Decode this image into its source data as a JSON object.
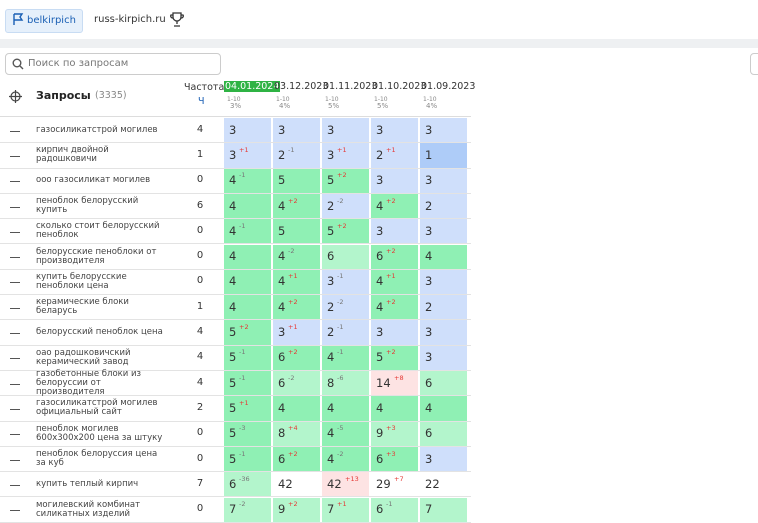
{
  "tabs": [
    "belkirpich",
    "russ-kirpich.ru"
  ],
  "search_placeholder": "Поиск по запросам",
  "header": {
    "queries_label": "Запросы",
    "count": "(3335)",
    "freq_label": "Частота",
    "freq_sub": "Ч"
  },
  "dates": [
    {
      "date": "04.01.2024",
      "range": "1-10",
      "pct": "3%"
    },
    {
      "date": "03.12.2023",
      "range": "1-10",
      "pct": "4%"
    },
    {
      "date": "01.11.2023",
      "range": "1-10",
      "pct": "5%"
    },
    {
      "date": "01.10.2023",
      "range": "1-10",
      "pct": "5%"
    },
    {
      "date": "01.09.2023",
      "range": "1-10",
      "pct": "4%"
    }
  ],
  "rows": [
    {
      "query": "газосиликатстрой могилев",
      "freq": 4,
      "cells": [
        {
          "pos": 3,
          "color": "#cfdffb"
        },
        {
          "pos": 3,
          "color": "#cfdffb"
        },
        {
          "pos": 3,
          "color": "#cfdffb"
        },
        {
          "pos": 3,
          "color": "#cfdffb"
        },
        {
          "pos": 3,
          "color": "#cfdffb"
        }
      ]
    },
    {
      "query": "кирпич двойной радошковичи",
      "freq": 1,
      "cells": [
        {
          "pos": 3,
          "delta": "+1",
          "color": "#cfdffb"
        },
        {
          "pos": 2,
          "delta": "-1",
          "color": "#cfdffb"
        },
        {
          "pos": 3,
          "delta": "+1",
          "color": "#cfdffb"
        },
        {
          "pos": 2,
          "delta": "+1",
          "color": "#cfdffb"
        },
        {
          "pos": 1,
          "color": "#aeccf8"
        }
      ]
    },
    {
      "query": "ооо газосиликат могилев",
      "freq": 0,
      "cells": [
        {
          "pos": 4,
          "delta": "-1",
          "color": "#8ff0b4"
        },
        {
          "pos": 5,
          "color": "#8ff0b4"
        },
        {
          "pos": 5,
          "delta": "+2",
          "color": "#8ff0b4"
        },
        {
          "pos": 3,
          "color": "#cfdffb"
        },
        {
          "pos": 3,
          "color": "#cfdffb"
        }
      ]
    },
    {
      "query": "пеноблок белорусский купить",
      "freq": 6,
      "cells": [
        {
          "pos": 4,
          "color": "#8ff0b4"
        },
        {
          "pos": 4,
          "delta": "+2",
          "color": "#8ff0b4"
        },
        {
          "pos": 2,
          "delta": "-2",
          "color": "#cfdffb"
        },
        {
          "pos": 4,
          "delta": "+2",
          "color": "#8ff0b4"
        },
        {
          "pos": 2,
          "color": "#cfdffb"
        }
      ]
    },
    {
      "query": "сколько стоит белорусский пеноблок",
      "freq": 0,
      "cells": [
        {
          "pos": 4,
          "delta": "-1",
          "color": "#8ff0b4"
        },
        {
          "pos": 5,
          "color": "#8ff0b4"
        },
        {
          "pos": 5,
          "delta": "+2",
          "color": "#8ff0b4"
        },
        {
          "pos": 3,
          "color": "#cfdffb"
        },
        {
          "pos": 3,
          "color": "#cfdffb"
        }
      ]
    },
    {
      "query": "белорусские пеноблоки от производителя",
      "freq": 0,
      "cells": [
        {
          "pos": 4,
          "color": "#8ff0b4"
        },
        {
          "pos": 4,
          "delta": "-2",
          "color": "#8ff0b4"
        },
        {
          "pos": 6,
          "color": "#b3f5cc"
        },
        {
          "pos": 6,
          "delta": "+2",
          "color": "#8ff0b4"
        },
        {
          "pos": 4,
          "color": "#8ff0b4"
        }
      ]
    },
    {
      "query": "купить белорусские пеноблоки цена",
      "freq": 0,
      "cells": [
        {
          "pos": 4,
          "color": "#8ff0b4"
        },
        {
          "pos": 4,
          "delta": "+1",
          "color": "#8ff0b4"
        },
        {
          "pos": 3,
          "delta": "-1",
          "color": "#cfdffb"
        },
        {
          "pos": 4,
          "delta": "+1",
          "color": "#8ff0b4"
        },
        {
          "pos": 3,
          "color": "#cfdffb"
        }
      ]
    },
    {
      "query": "керамические блоки беларусь",
      "freq": 1,
      "cells": [
        {
          "pos": 4,
          "color": "#8ff0b4"
        },
        {
          "pos": 4,
          "delta": "+2",
          "color": "#8ff0b4"
        },
        {
          "pos": 2,
          "delta": "-2",
          "color": "#cfdffb"
        },
        {
          "pos": 4,
          "delta": "+2",
          "color": "#8ff0b4"
        },
        {
          "pos": 2,
          "color": "#cfdffb"
        }
      ]
    },
    {
      "query": "белорусский пеноблок цена",
      "freq": 4,
      "cells": [
        {
          "pos": 5,
          "delta": "+2",
          "color": "#8ff0b4"
        },
        {
          "pos": 3,
          "delta": "+1",
          "color": "#cfdffb"
        },
        {
          "pos": 2,
          "delta": "-1",
          "color": "#cfdffb"
        },
        {
          "pos": 3,
          "color": "#cfdffb"
        },
        {
          "pos": 3,
          "color": "#cfdffb"
        }
      ]
    },
    {
      "query": "оао радошковичский керамический завод",
      "freq": 4,
      "cells": [
        {
          "pos": 5,
          "delta": "-1",
          "color": "#8ff0b4"
        },
        {
          "pos": 6,
          "delta": "+2",
          "color": "#8ff0b4"
        },
        {
          "pos": 4,
          "delta": "-1",
          "color": "#8ff0b4"
        },
        {
          "pos": 5,
          "delta": "+2",
          "color": "#8ff0b4"
        },
        {
          "pos": 3,
          "color": "#cfdffb"
        }
      ]
    },
    {
      "query": "газобетонные блоки из белоруссии от производителя",
      "freq": 4,
      "cells": [
        {
          "pos": 5,
          "delta": "-1",
          "color": "#8ff0b4"
        },
        {
          "pos": 6,
          "delta": "-2",
          "color": "#b3f5cc"
        },
        {
          "pos": 8,
          "delta": "-6",
          "color": "#b3f5cc"
        },
        {
          "pos": 14,
          "delta": "+8",
          "color": "#fde3e3"
        },
        {
          "pos": 6,
          "color": "#b3f5cc"
        }
      ]
    },
    {
      "query": "газосиликатстрой могилев официальный сайт",
      "freq": 2,
      "cells": [
        {
          "pos": 5,
          "delta": "+1",
          "color": "#8ff0b4"
        },
        {
          "pos": 4,
          "color": "#8ff0b4"
        },
        {
          "pos": 4,
          "color": "#8ff0b4"
        },
        {
          "pos": 4,
          "color": "#8ff0b4"
        },
        {
          "pos": 4,
          "color": "#8ff0b4"
        }
      ]
    },
    {
      "query": "пеноблок могилев 600х300х200 цена за штуку",
      "freq": 0,
      "cells": [
        {
          "pos": 5,
          "delta": "-3",
          "color": "#8ff0b4"
        },
        {
          "pos": 8,
          "delta": "+4",
          "color": "#b3f5cc"
        },
        {
          "pos": 4,
          "delta": "-5",
          "color": "#8ff0b4"
        },
        {
          "pos": 9,
          "delta": "+3",
          "color": "#b3f5cc"
        },
        {
          "pos": 6,
          "color": "#b3f5cc"
        }
      ]
    },
    {
      "query": "пеноблок белоруссия цена за куб",
      "freq": 0,
      "cells": [
        {
          "pos": 5,
          "delta": "-1",
          "color": "#8ff0b4"
        },
        {
          "pos": 6,
          "delta": "+2",
          "color": "#8ff0b4"
        },
        {
          "pos": 4,
          "delta": "-2",
          "color": "#8ff0b4"
        },
        {
          "pos": 6,
          "delta": "+3",
          "color": "#8ff0b4"
        },
        {
          "pos": 3,
          "color": "#cfdffb"
        }
      ]
    },
    {
      "query": "купить теплый кирпич",
      "freq": 7,
      "cells": [
        {
          "pos": 6,
          "delta": "-36",
          "color": "#b3f5cc"
        },
        {
          "pos": 42,
          "color": "#ffffff"
        },
        {
          "pos": 42,
          "delta": "+13",
          "color": "#fde3e3"
        },
        {
          "pos": 29,
          "delta": "+7",
          "color": "#ffffff"
        },
        {
          "pos": 22,
          "color": "#ffffff"
        }
      ]
    },
    {
      "query": "могилевский комбинат силикатных изделий",
      "freq": 0,
      "cells": [
        {
          "pos": 7,
          "delta": "-2",
          "color": "#b3f5cc"
        },
        {
          "pos": 9,
          "delta": "+2",
          "color": "#b3f5cc"
        },
        {
          "pos": 7,
          "delta": "+1",
          "color": "#b3f5cc"
        },
        {
          "pos": 6,
          "delta": "-1",
          "color": "#b3f5cc"
        },
        {
          "pos": 7,
          "color": "#b3f5cc"
        }
      ]
    }
  ]
}
